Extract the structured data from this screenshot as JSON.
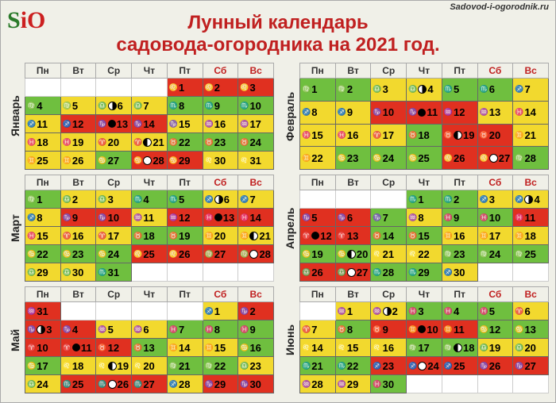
{
  "site_url": "Sadovod-i-ogorodnik.ru",
  "logo": {
    "s": "S",
    "i": "i",
    "o": "O"
  },
  "title_line1": "Лунный календарь",
  "title_line2": "садовода-огородника на 2021 год.",
  "weekdays": [
    "Пн",
    "Вт",
    "Ср",
    "Чт",
    "Пт",
    "Сб",
    "Вс"
  ],
  "colors": {
    "green": "#6fbf3f",
    "yellow": "#f2d92e",
    "red": "#e03020",
    "gray": "#666666",
    "title": "#c02020",
    "bg": "#f0f0e8"
  },
  "months": [
    {
      "name": "Январь",
      "lead": 4,
      "days": [
        {
          "n": 1,
          "c": "r",
          "z": "♌"
        },
        {
          "n": 2,
          "c": "r",
          "z": "♌"
        },
        {
          "n": 3,
          "c": "r",
          "z": "♌"
        },
        {
          "n": 4,
          "c": "g",
          "z": "♍"
        },
        {
          "n": 5,
          "c": "y",
          "z": "♍"
        },
        {
          "n": 6,
          "c": "y",
          "z": "♎",
          "m": "lq"
        },
        {
          "n": 7,
          "c": "y",
          "z": "♎"
        },
        {
          "n": 8,
          "c": "g",
          "z": "♏"
        },
        {
          "n": 9,
          "c": "g",
          "z": "♏"
        },
        {
          "n": 10,
          "c": "g",
          "z": "♏"
        },
        {
          "n": 11,
          "c": "y",
          "z": "♐"
        },
        {
          "n": 12,
          "c": "r",
          "z": "♐"
        },
        {
          "n": 13,
          "c": "r",
          "z": "♑",
          "m": "new"
        },
        {
          "n": 14,
          "c": "r",
          "z": "♑"
        },
        {
          "n": 15,
          "c": "y",
          "z": "♑"
        },
        {
          "n": 16,
          "c": "y",
          "z": "♒"
        },
        {
          "n": 17,
          "c": "y",
          "z": "♒"
        },
        {
          "n": 18,
          "c": "y",
          "z": "♓"
        },
        {
          "n": 19,
          "c": "y",
          "z": "♓"
        },
        {
          "n": 20,
          "c": "y",
          "z": "♈"
        },
        {
          "n": 21,
          "c": "y",
          "z": "♈",
          "m": "fq"
        },
        {
          "n": 22,
          "c": "g",
          "z": "♉"
        },
        {
          "n": 23,
          "c": "g",
          "z": "♉"
        },
        {
          "n": 24,
          "c": "g",
          "z": "♉"
        },
        {
          "n": 25,
          "c": "y",
          "z": "♊"
        },
        {
          "n": 26,
          "c": "y",
          "z": "♊"
        },
        {
          "n": 27,
          "c": "g",
          "z": "♋"
        },
        {
          "n": 28,
          "c": "r",
          "z": "♋",
          "m": "full"
        },
        {
          "n": 29,
          "c": "r",
          "z": "♋"
        },
        {
          "n": 30,
          "c": "y",
          "z": "♌"
        },
        {
          "n": 31,
          "c": "y",
          "z": "♌"
        }
      ]
    },
    {
      "name": "Февраль",
      "lead": 0,
      "days": [
        {
          "n": 1,
          "c": "g",
          "z": "♍"
        },
        {
          "n": 2,
          "c": "g",
          "z": "♍"
        },
        {
          "n": 3,
          "c": "y",
          "z": "♎"
        },
        {
          "n": 4,
          "c": "y",
          "z": "♎",
          "m": "lq"
        },
        {
          "n": 5,
          "c": "g",
          "z": "♏"
        },
        {
          "n": 6,
          "c": "g",
          "z": "♏"
        },
        {
          "n": 7,
          "c": "y",
          "z": "♐"
        },
        {
          "n": 8,
          "c": "y",
          "z": "♐"
        },
        {
          "n": 9,
          "c": "y",
          "z": "♐"
        },
        {
          "n": 10,
          "c": "r",
          "z": "♑"
        },
        {
          "n": 11,
          "c": "r",
          "z": "♑",
          "m": "new"
        },
        {
          "n": 12,
          "c": "r",
          "z": "♒"
        },
        {
          "n": 13,
          "c": "y",
          "z": "♒"
        },
        {
          "n": 14,
          "c": "y",
          "z": "♓"
        },
        {
          "n": 15,
          "c": "y",
          "z": "♓"
        },
        {
          "n": 16,
          "c": "y",
          "z": "♓"
        },
        {
          "n": 17,
          "c": "y",
          "z": "♈"
        },
        {
          "n": 18,
          "c": "g",
          "z": "♉"
        },
        {
          "n": 19,
          "c": "r",
          "z": "♉",
          "m": "fq"
        },
        {
          "n": 20,
          "c": "r",
          "z": "♉"
        },
        {
          "n": 21,
          "c": "y",
          "z": "♊"
        },
        {
          "n": 22,
          "c": "y",
          "z": "♊"
        },
        {
          "n": 23,
          "c": "g",
          "z": "♋"
        },
        {
          "n": 24,
          "c": "g",
          "z": "♋"
        },
        {
          "n": 25,
          "c": "g",
          "z": "♋"
        },
        {
          "n": 26,
          "c": "r",
          "z": "♌"
        },
        {
          "n": 27,
          "c": "r",
          "z": "♌",
          "m": "full"
        },
        {
          "n": 28,
          "c": "g",
          "z": "♍"
        }
      ]
    },
    {
      "name": "Март",
      "lead": 0,
      "days": [
        {
          "n": 1,
          "c": "g",
          "z": "♍"
        },
        {
          "n": 2,
          "c": "y",
          "z": "♎"
        },
        {
          "n": 3,
          "c": "y",
          "z": "♎"
        },
        {
          "n": 4,
          "c": "g",
          "z": "♏"
        },
        {
          "n": 5,
          "c": "g",
          "z": "♏"
        },
        {
          "n": 6,
          "c": "y",
          "z": "♐",
          "m": "lq"
        },
        {
          "n": 7,
          "c": "y",
          "z": "♐"
        },
        {
          "n": 8,
          "c": "y",
          "z": "♐"
        },
        {
          "n": 9,
          "c": "r",
          "z": "♑"
        },
        {
          "n": 10,
          "c": "r",
          "z": "♑"
        },
        {
          "n": 11,
          "c": "y",
          "z": "♒"
        },
        {
          "n": 12,
          "c": "r",
          "z": "♒"
        },
        {
          "n": 13,
          "c": "r",
          "z": "♓",
          "m": "new"
        },
        {
          "n": 14,
          "c": "r",
          "z": "♓"
        },
        {
          "n": 15,
          "c": "y",
          "z": "♓"
        },
        {
          "n": 16,
          "c": "y",
          "z": "♈"
        },
        {
          "n": 17,
          "c": "y",
          "z": "♈"
        },
        {
          "n": 18,
          "c": "g",
          "z": "♉"
        },
        {
          "n": 19,
          "c": "g",
          "z": "♉"
        },
        {
          "n": 20,
          "c": "y",
          "z": "♊"
        },
        {
          "n": 21,
          "c": "y",
          "z": "♊",
          "m": "fq"
        },
        {
          "n": 22,
          "c": "g",
          "z": "♋"
        },
        {
          "n": 23,
          "c": "g",
          "z": "♋"
        },
        {
          "n": 24,
          "c": "g",
          "z": "♋"
        },
        {
          "n": 25,
          "c": "r",
          "z": "♌"
        },
        {
          "n": 26,
          "c": "r",
          "z": "♌"
        },
        {
          "n": 27,
          "c": "r",
          "z": "♍"
        },
        {
          "n": 28,
          "c": "r",
          "z": "♍",
          "m": "full"
        },
        {
          "n": 29,
          "c": "y",
          "z": "♎"
        },
        {
          "n": 30,
          "c": "y",
          "z": "♎"
        },
        {
          "n": 31,
          "c": "g",
          "z": "♏"
        }
      ]
    },
    {
      "name": "Апрель",
      "lead": 3,
      "days": [
        {
          "n": 1,
          "c": "g",
          "z": "♏"
        },
        {
          "n": 2,
          "c": "g",
          "z": "♏"
        },
        {
          "n": 3,
          "c": "y",
          "z": "♐"
        },
        {
          "n": 4,
          "c": "y",
          "z": "♐",
          "m": "lq"
        },
        {
          "n": 5,
          "c": "r",
          "z": "♑"
        },
        {
          "n": 6,
          "c": "r",
          "z": "♑"
        },
        {
          "n": 7,
          "c": "g",
          "z": "♑"
        },
        {
          "n": 8,
          "c": "y",
          "z": "♒"
        },
        {
          "n": 9,
          "c": "g",
          "z": "♓"
        },
        {
          "n": 10,
          "c": "g",
          "z": "♓"
        },
        {
          "n": 11,
          "c": "r",
          "z": "♓"
        },
        {
          "n": 12,
          "c": "r",
          "z": "♈",
          "m": "new"
        },
        {
          "n": 13,
          "c": "r",
          "z": "♈"
        },
        {
          "n": 14,
          "c": "g",
          "z": "♉"
        },
        {
          "n": 15,
          "c": "g",
          "z": "♉"
        },
        {
          "n": 16,
          "c": "y",
          "z": "♊"
        },
        {
          "n": 17,
          "c": "y",
          "z": "♊"
        },
        {
          "n": 18,
          "c": "y",
          "z": "♊"
        },
        {
          "n": 19,
          "c": "g",
          "z": "♋"
        },
        {
          "n": 20,
          "c": "g",
          "z": "♋",
          "m": "fq"
        },
        {
          "n": 21,
          "c": "y",
          "z": "♌"
        },
        {
          "n": 22,
          "c": "y",
          "z": "♌"
        },
        {
          "n": 23,
          "c": "g",
          "z": "♍"
        },
        {
          "n": 24,
          "c": "g",
          "z": "♍"
        },
        {
          "n": 25,
          "c": "g",
          "z": "♍"
        },
        {
          "n": 26,
          "c": "r",
          "z": "♎"
        },
        {
          "n": 27,
          "c": "r",
          "z": "♎",
          "m": "full"
        },
        {
          "n": 28,
          "c": "g",
          "z": "♏"
        },
        {
          "n": 29,
          "c": "g",
          "z": "♏"
        },
        {
          "n": 30,
          "c": "y",
          "z": "♐"
        }
      ]
    },
    {
      "name": "Май",
      "lead": 5,
      "prepend": {
        "n": 31,
        "c": "r",
        "z": "♒"
      },
      "days": [
        {
          "n": 1,
          "c": "y",
          "z": "♐"
        },
        {
          "n": 2,
          "c": "r",
          "z": "♑"
        },
        {
          "n": 3,
          "c": "r",
          "z": "♑",
          "m": "lq"
        },
        {
          "n": 4,
          "c": "r",
          "z": "♑"
        },
        {
          "n": 5,
          "c": "y",
          "z": "♒"
        },
        {
          "n": 6,
          "c": "y",
          "z": "♒"
        },
        {
          "n": 7,
          "c": "g",
          "z": "♓"
        },
        {
          "n": 8,
          "c": "g",
          "z": "♓"
        },
        {
          "n": 9,
          "c": "g",
          "z": "♓"
        },
        {
          "n": 10,
          "c": "r",
          "z": "♈"
        },
        {
          "n": 11,
          "c": "r",
          "z": "♈",
          "m": "new"
        },
        {
          "n": 12,
          "c": "r",
          "z": "♉"
        },
        {
          "n": 13,
          "c": "g",
          "z": "♉"
        },
        {
          "n": 14,
          "c": "y",
          "z": "♊"
        },
        {
          "n": 15,
          "c": "y",
          "z": "♊"
        },
        {
          "n": 16,
          "c": "g",
          "z": "♋"
        },
        {
          "n": 17,
          "c": "g",
          "z": "♋"
        },
        {
          "n": 18,
          "c": "y",
          "z": "♌"
        },
        {
          "n": 19,
          "c": "y",
          "z": "♌",
          "m": "fq"
        },
        {
          "n": 20,
          "c": "y",
          "z": "♌"
        },
        {
          "n": 21,
          "c": "g",
          "z": "♍"
        },
        {
          "n": 22,
          "c": "g",
          "z": "♍"
        },
        {
          "n": 23,
          "c": "y",
          "z": "♎"
        },
        {
          "n": 24,
          "c": "y",
          "z": "♎"
        },
        {
          "n": 25,
          "c": "r",
          "z": "♏"
        },
        {
          "n": 26,
          "c": "r",
          "z": "♏",
          "m": "full"
        },
        {
          "n": 27,
          "c": "r",
          "z": "♏"
        },
        {
          "n": 28,
          "c": "y",
          "z": "♐"
        },
        {
          "n": 29,
          "c": "r",
          "z": "♑"
        },
        {
          "n": 30,
          "c": "r",
          "z": "♑"
        }
      ]
    },
    {
      "name": "Июнь",
      "lead": 1,
      "days": [
        {
          "n": 1,
          "c": "y",
          "z": "♒"
        },
        {
          "n": 2,
          "c": "y",
          "z": "♒",
          "m": "lq"
        },
        {
          "n": 3,
          "c": "g",
          "z": "♓"
        },
        {
          "n": 4,
          "c": "g",
          "z": "♓"
        },
        {
          "n": 5,
          "c": "g",
          "z": "♓"
        },
        {
          "n": 6,
          "c": "y",
          "z": "♈"
        },
        {
          "n": 7,
          "c": "y",
          "z": "♈"
        },
        {
          "n": 8,
          "c": "g",
          "z": "♉"
        },
        {
          "n": 9,
          "c": "r",
          "z": "♉"
        },
        {
          "n": 10,
          "c": "r",
          "z": "♊",
          "m": "new"
        },
        {
          "n": 11,
          "c": "r",
          "z": "♊"
        },
        {
          "n": 12,
          "c": "g",
          "z": "♋"
        },
        {
          "n": 13,
          "c": "g",
          "z": "♋"
        },
        {
          "n": 14,
          "c": "y",
          "z": "♌"
        },
        {
          "n": 15,
          "c": "y",
          "z": "♌"
        },
        {
          "n": 16,
          "c": "y",
          "z": "♌"
        },
        {
          "n": 17,
          "c": "g",
          "z": "♍"
        },
        {
          "n": 18,
          "c": "g",
          "z": "♍",
          "m": "fq"
        },
        {
          "n": 19,
          "c": "y",
          "z": "♎"
        },
        {
          "n": 20,
          "c": "y",
          "z": "♎"
        },
        {
          "n": 21,
          "c": "g",
          "z": "♏"
        },
        {
          "n": 22,
          "c": "g",
          "z": "♏"
        },
        {
          "n": 23,
          "c": "r",
          "z": "♐"
        },
        {
          "n": 24,
          "c": "r",
          "z": "♐",
          "m": "full"
        },
        {
          "n": 25,
          "c": "r",
          "z": "♐"
        },
        {
          "n": 26,
          "c": "r",
          "z": "♑"
        },
        {
          "n": 27,
          "c": "r",
          "z": "♑"
        },
        {
          "n": 28,
          "c": "y",
          "z": "♒"
        },
        {
          "n": 29,
          "c": "y",
          "z": "♒"
        },
        {
          "n": 30,
          "c": "g",
          "z": "♓"
        }
      ]
    }
  ]
}
